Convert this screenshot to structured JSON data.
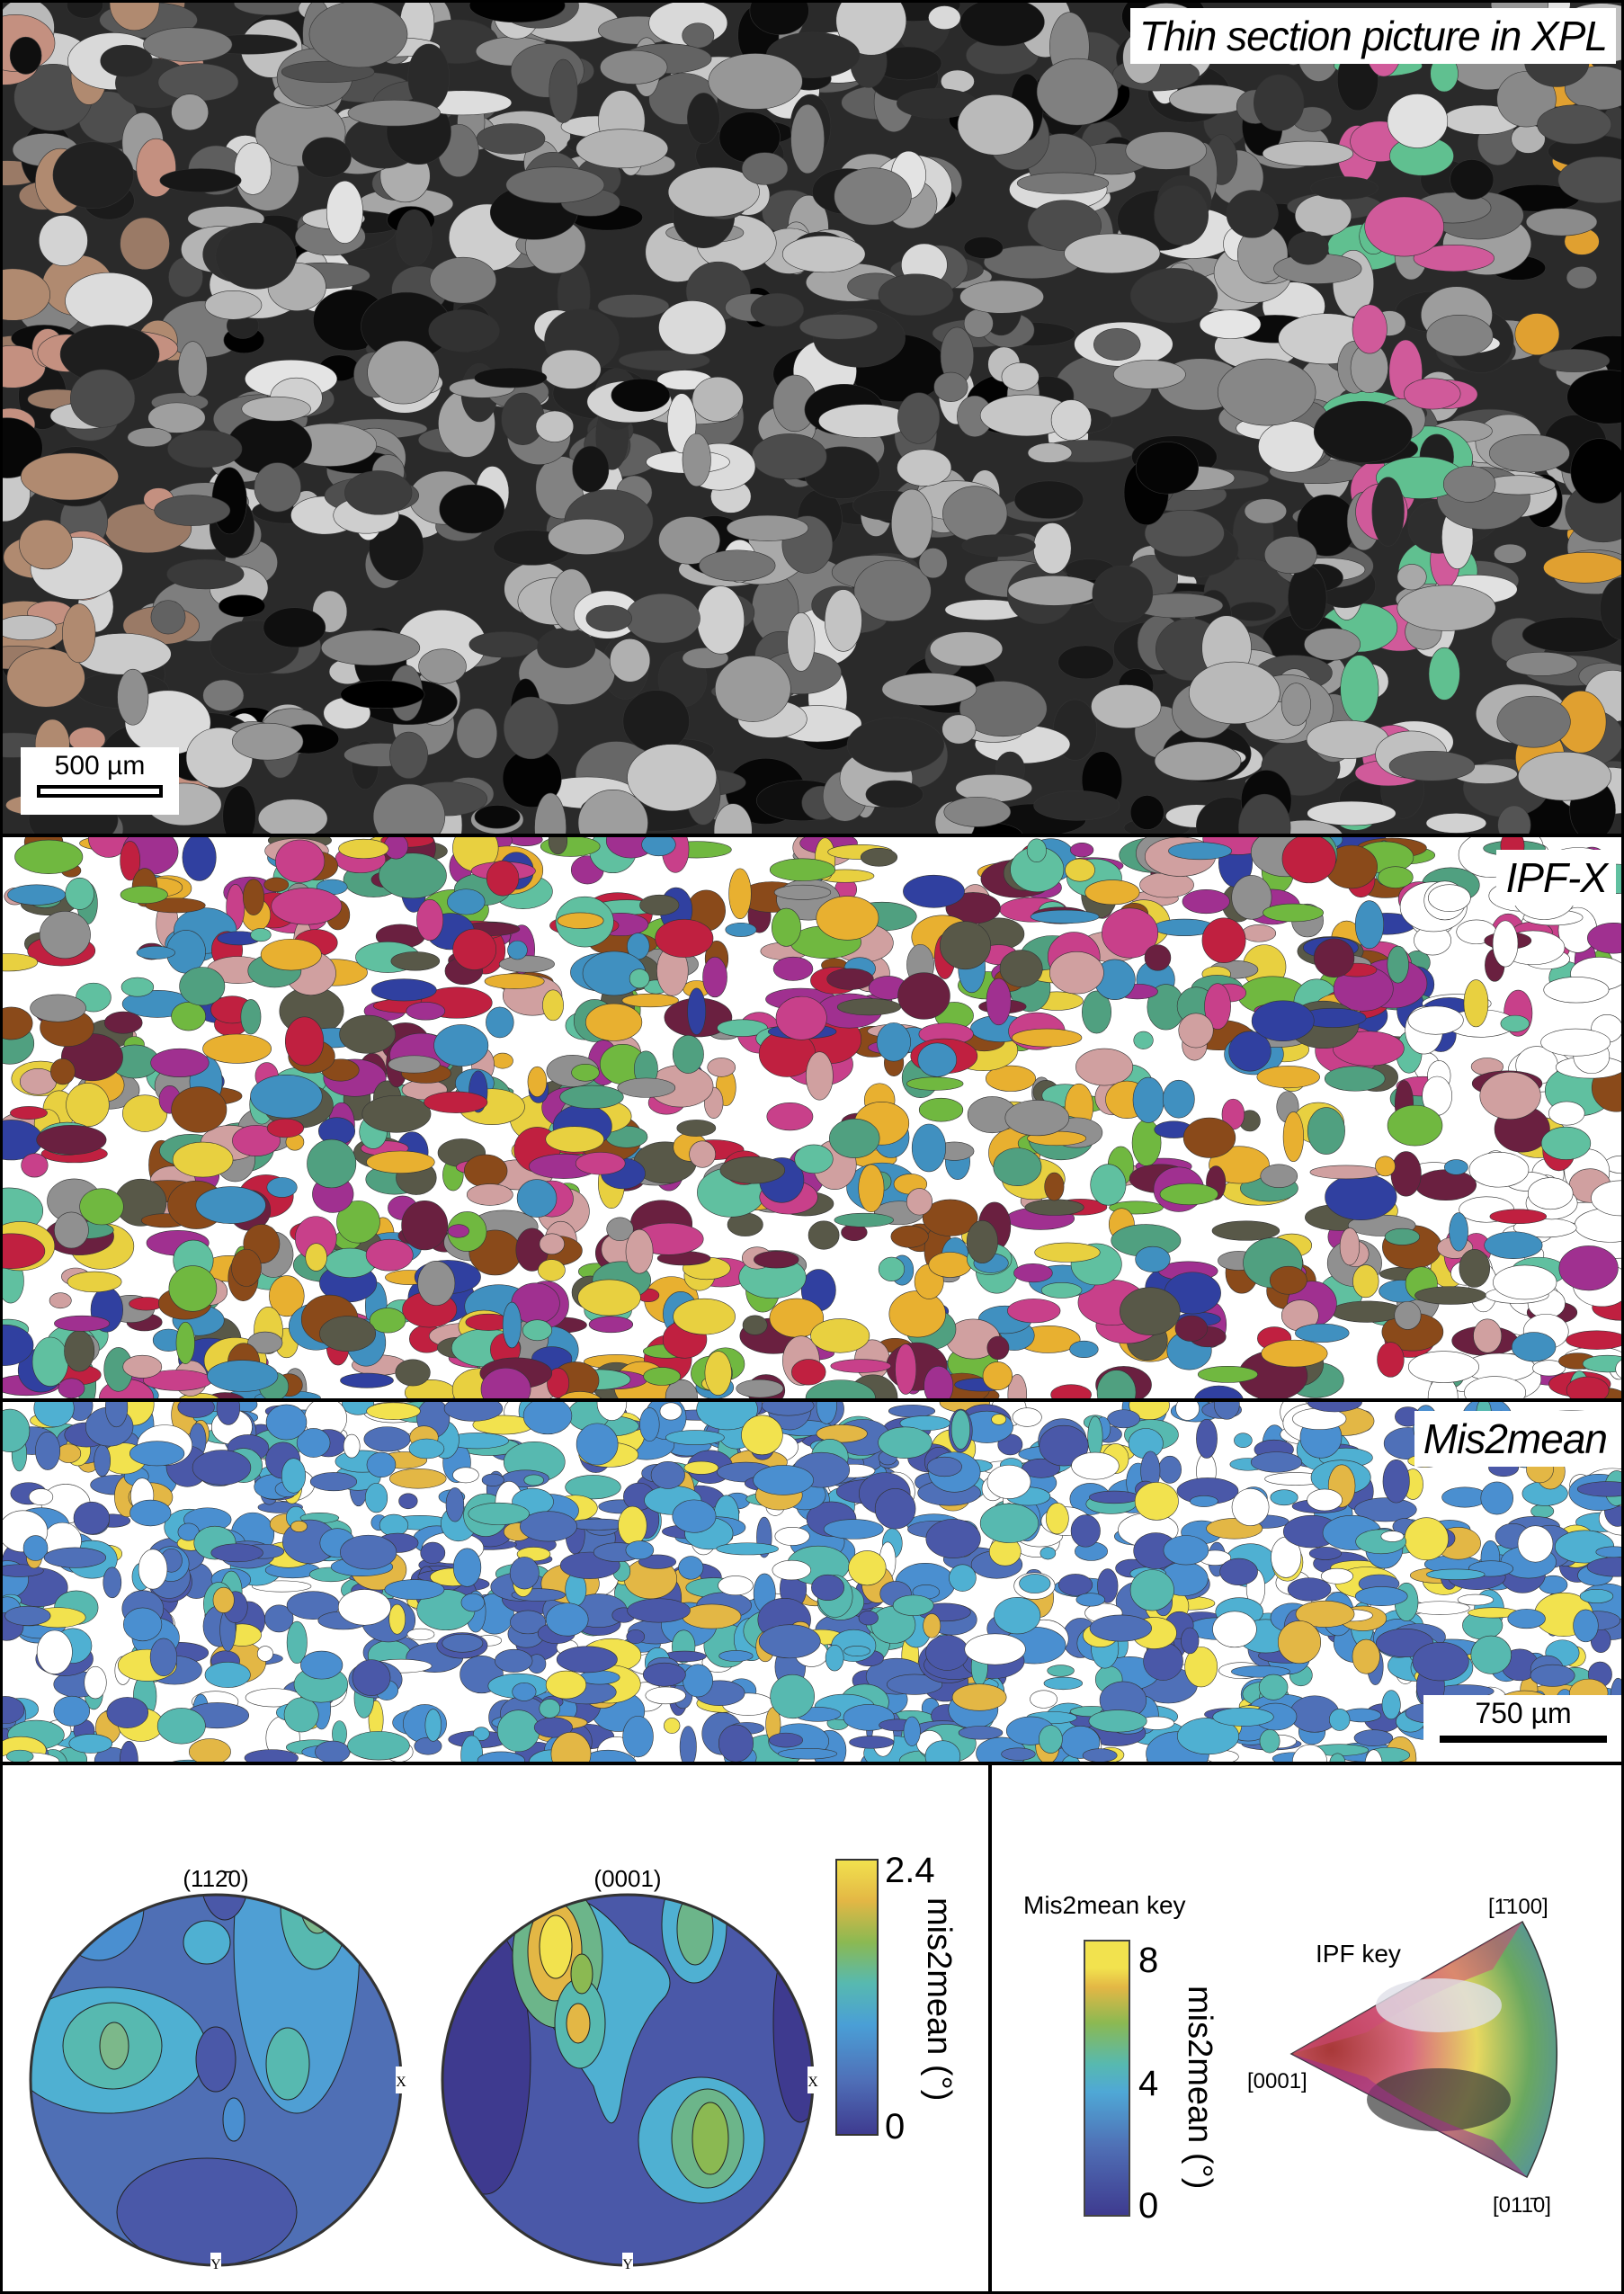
{
  "panels": {
    "xpl": {
      "title": "Thin section picture in XPL",
      "scale_bar": "500 µm"
    },
    "ipf": {
      "title": "IPF-X"
    },
    "mis2mean": {
      "title": "Mis2mean",
      "scale_bar": "750 µm"
    }
  },
  "pole_figures": {
    "items": [
      {
        "label": "(112̄0)",
        "x_axis": "X",
        "y_axis": "Y"
      },
      {
        "label": "(0001)",
        "x_axis": "X",
        "y_axis": "Y"
      }
    ],
    "colorbar": {
      "label": "mis2mean (°)",
      "max": "2.4",
      "min": "0",
      "range": [
        0,
        2.4
      ]
    }
  },
  "keys": {
    "mis2mean_key": {
      "title": "Mis2mean key",
      "label": "mis2mean (°)",
      "ticks": [
        "8",
        "4",
        "0"
      ],
      "range": [
        0,
        8
      ]
    },
    "ipf_key": {
      "title": "IPF key",
      "corners": {
        "apex": "[0001]",
        "top": "[1̄100]",
        "bottom": "[011̄0]"
      }
    }
  },
  "colors": {
    "parula": [
      "#3e3a8f",
      "#4a58a8",
      "#4f70b8",
      "#4a8fd0",
      "#4fb0d2",
      "#57b9b0",
      "#6cb58a",
      "#8bb952",
      "#b8c54e",
      "#e3b745",
      "#f2e24e"
    ]
  }
}
